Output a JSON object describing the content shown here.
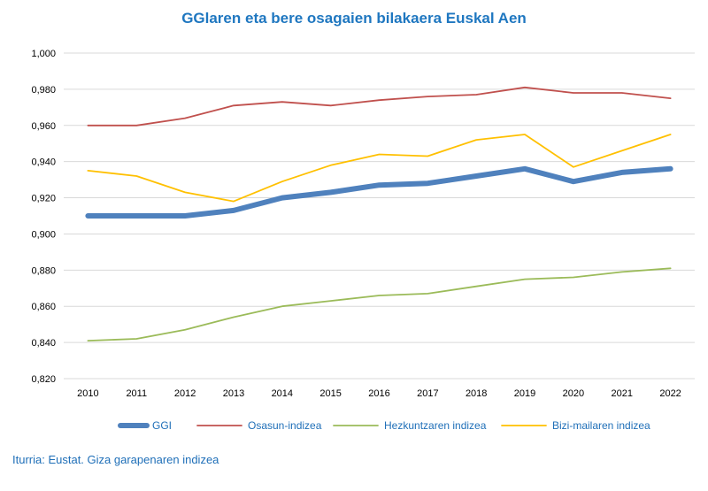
{
  "chart_data": {
    "type": "line",
    "title": "GGlaren eta bere osagaien bilakaera Euskal Aen",
    "x": [
      "2010",
      "2011",
      "2012",
      "2013",
      "2014",
      "2015",
      "2016",
      "2017",
      "2018",
      "2019",
      "2020",
      "2021",
      "2022"
    ],
    "ylim": [
      0.82,
      1.0
    ],
    "yticks": [
      "0,820",
      "0,840",
      "0,860",
      "0,880",
      "0,900",
      "0,920",
      "0,940",
      "0,960",
      "0,980",
      "1,000"
    ],
    "grid": true,
    "legend_position": "bottom",
    "series": [
      {
        "name": "GGI",
        "color": "#4f81bd",
        "values": [
          0.91,
          0.91,
          0.91,
          0.913,
          0.92,
          0.923,
          0.927,
          0.928,
          0.932,
          0.936,
          0.929,
          0.934,
          0.936
        ]
      },
      {
        "name": "Osasun-indizea",
        "color": "#c0504d",
        "values": [
          0.96,
          0.96,
          0.964,
          0.971,
          0.973,
          0.971,
          0.974,
          0.976,
          0.977,
          0.981,
          0.978,
          0.978,
          0.975
        ]
      },
      {
        "name": "Hezkuntzaren indizea",
        "color": "#9bbb59",
        "values": [
          0.841,
          0.842,
          0.847,
          0.854,
          0.86,
          0.863,
          0.866,
          0.867,
          0.871,
          0.875,
          0.876,
          0.879,
          0.881
        ]
      },
      {
        "name": "Bizi-mailaren indizea",
        "color": "#ffc000",
        "values": [
          0.935,
          0.932,
          0.923,
          0.918,
          0.929,
          0.938,
          0.944,
          0.943,
          0.952,
          0.955,
          0.937,
          0.946,
          0.955
        ]
      }
    ]
  },
  "source": "Iturria: Eustat. Giza garapenaren indizea"
}
